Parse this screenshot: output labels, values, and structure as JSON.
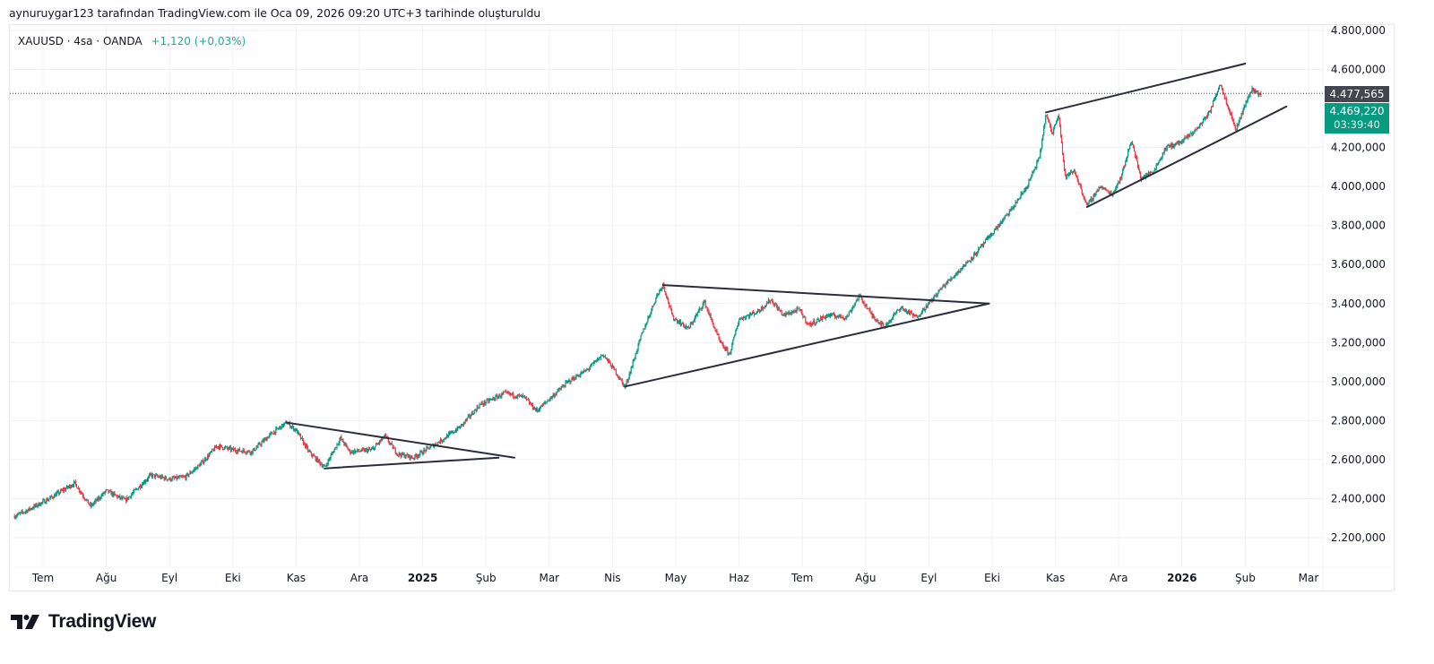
{
  "caption": "aynuruygar123 tarafından TradingView.com ile Oca 09, 2026 09:20 UTC+3 tarihinde oluşturuldu",
  "legend": {
    "symbol": "XAUUSD · 4sa · OANDA",
    "change": "+1,120 (+0,03%)",
    "change_color": "#22ab94"
  },
  "price_tags": {
    "last": "4.477,565",
    "current": "4.469,220",
    "countdown": "03:39:40",
    "last_color": "#434651",
    "current_color": "#089981"
  },
  "logo": {
    "text": "TradingView",
    "icon": "tradingview-logo-icon"
  },
  "chart_data": {
    "type": "candlestick",
    "title": "XAUUSD · 4sa · OANDA",
    "ylim": [
      2100000,
      4850000
    ],
    "y_ticks": [
      {
        "value": 4800000,
        "label": "4.800,000"
      },
      {
        "value": 4600000,
        "label": "4.600,000"
      },
      {
        "value": 4200000,
        "label": "4.200,000"
      },
      {
        "value": 4000000,
        "label": "4.000,000"
      },
      {
        "value": 3800000,
        "label": "3.800,000"
      },
      {
        "value": 3600000,
        "label": "3.600,000"
      },
      {
        "value": 3400000,
        "label": "3.400,000"
      },
      {
        "value": 3200000,
        "label": "3.200,000"
      },
      {
        "value": 3000000,
        "label": "3.000,000"
      },
      {
        "value": 2800000,
        "label": "2.800,000"
      },
      {
        "value": 2600000,
        "label": "2.600,000"
      },
      {
        "value": 2400000,
        "label": "2.400,000"
      },
      {
        "value": 2200000,
        "label": "2.200,000"
      }
    ],
    "x_ticks": [
      {
        "t": 1.0,
        "label": "Tem",
        "bold": false
      },
      {
        "t": 2.0,
        "label": "Ağu",
        "bold": false
      },
      {
        "t": 3.0,
        "label": "Eyl",
        "bold": false
      },
      {
        "t": 4.0,
        "label": "Eki",
        "bold": false
      },
      {
        "t": 5.0,
        "label": "Kas",
        "bold": false
      },
      {
        "t": 6.0,
        "label": "Ara",
        "bold": false
      },
      {
        "t": 7.0,
        "label": "2025",
        "bold": true
      },
      {
        "t": 8.0,
        "label": "Şub",
        "bold": false
      },
      {
        "t": 9.0,
        "label": "Mar",
        "bold": false
      },
      {
        "t": 10.0,
        "label": "Nis",
        "bold": false
      },
      {
        "t": 11.0,
        "label": "May",
        "bold": false
      },
      {
        "t": 12.0,
        "label": "Haz",
        "bold": false
      },
      {
        "t": 13.0,
        "label": "Tem",
        "bold": false
      },
      {
        "t": 14.0,
        "label": "Ağu",
        "bold": false
      },
      {
        "t": 15.0,
        "label": "Eyl",
        "bold": false
      },
      {
        "t": 16.0,
        "label": "Eki",
        "bold": false
      },
      {
        "t": 17.0,
        "label": "Kas",
        "bold": false
      },
      {
        "t": 18.0,
        "label": "Ara",
        "bold": false
      },
      {
        "t": 19.0,
        "label": "2026",
        "bold": true
      },
      {
        "t": 20.0,
        "label": "Şub",
        "bold": false
      },
      {
        "t": 21.0,
        "label": "Mar",
        "bold": false
      }
    ],
    "price_path": [
      [
        0.55,
        2310000
      ],
      [
        0.75,
        2340000
      ],
      [
        1.1,
        2400000
      ],
      [
        1.5,
        2480000
      ],
      [
        1.75,
        2360000
      ],
      [
        2.0,
        2440000
      ],
      [
        2.3,
        2390000
      ],
      [
        2.7,
        2520000
      ],
      [
        3.0,
        2500000
      ],
      [
        3.25,
        2510000
      ],
      [
        3.5,
        2580000
      ],
      [
        3.75,
        2670000
      ],
      [
        4.0,
        2650000
      ],
      [
        4.3,
        2640000
      ],
      [
        4.6,
        2730000
      ],
      [
        4.85,
        2790000
      ],
      [
        5.0,
        2750000
      ],
      [
        5.2,
        2640000
      ],
      [
        5.45,
        2560000
      ],
      [
        5.7,
        2710000
      ],
      [
        5.85,
        2640000
      ],
      [
        6.2,
        2650000
      ],
      [
        6.4,
        2720000
      ],
      [
        6.6,
        2630000
      ],
      [
        6.85,
        2610000
      ],
      [
        7.1,
        2660000
      ],
      [
        7.3,
        2700000
      ],
      [
        7.6,
        2770000
      ],
      [
        7.9,
        2880000
      ],
      [
        8.3,
        2940000
      ],
      [
        8.6,
        2920000
      ],
      [
        8.8,
        2850000
      ],
      [
        9.0,
        2910000
      ],
      [
        9.3,
        3000000
      ],
      [
        9.6,
        3060000
      ],
      [
        9.85,
        3140000
      ],
      [
        10.05,
        3050000
      ],
      [
        10.2,
        2970000
      ],
      [
        10.45,
        3230000
      ],
      [
        10.7,
        3440000
      ],
      [
        10.8,
        3500000
      ],
      [
        10.95,
        3330000
      ],
      [
        11.2,
        3270000
      ],
      [
        11.45,
        3410000
      ],
      [
        11.7,
        3200000
      ],
      [
        11.85,
        3140000
      ],
      [
        12.0,
        3320000
      ],
      [
        12.3,
        3360000
      ],
      [
        12.5,
        3420000
      ],
      [
        12.7,
        3340000
      ],
      [
        12.95,
        3370000
      ],
      [
        13.1,
        3290000
      ],
      [
        13.4,
        3340000
      ],
      [
        13.7,
        3330000
      ],
      [
        13.9,
        3440000
      ],
      [
        14.1,
        3340000
      ],
      [
        14.3,
        3280000
      ],
      [
        14.55,
        3380000
      ],
      [
        14.8,
        3330000
      ],
      [
        15.0,
        3400000
      ],
      [
        15.2,
        3480000
      ],
      [
        15.45,
        3560000
      ],
      [
        15.75,
        3660000
      ],
      [
        16.0,
        3760000
      ],
      [
        16.3,
        3880000
      ],
      [
        16.55,
        4000000
      ],
      [
        16.75,
        4150000
      ],
      [
        16.85,
        4370000
      ],
      [
        16.95,
        4270000
      ],
      [
        17.05,
        4380000
      ],
      [
        17.15,
        4050000
      ],
      [
        17.3,
        4080000
      ],
      [
        17.5,
        3900000
      ],
      [
        17.7,
        4000000
      ],
      [
        17.9,
        3960000
      ],
      [
        18.05,
        4060000
      ],
      [
        18.2,
        4240000
      ],
      [
        18.35,
        4040000
      ],
      [
        18.55,
        4080000
      ],
      [
        18.75,
        4200000
      ],
      [
        19.0,
        4230000
      ],
      [
        19.25,
        4300000
      ],
      [
        19.45,
        4390000
      ],
      [
        19.6,
        4530000
      ],
      [
        19.75,
        4390000
      ],
      [
        19.85,
        4290000
      ],
      [
        19.95,
        4380000
      ],
      [
        20.1,
        4500000
      ],
      [
        20.25,
        4470000
      ]
    ],
    "trend_lines": [
      {
        "name": "triangle-1-upper",
        "from": [
          4.85,
          2790000
        ],
        "to": [
          8.45,
          2610000
        ]
      },
      {
        "name": "triangle-1-lower",
        "from": [
          5.45,
          2555000
        ],
        "to": [
          8.2,
          2610000
        ]
      },
      {
        "name": "triangle-2-upper",
        "from": [
          10.8,
          3495000
        ],
        "to": [
          15.95,
          3400000
        ]
      },
      {
        "name": "triangle-2-lower",
        "from": [
          10.2,
          2975000
        ],
        "to": [
          15.95,
          3400000
        ]
      },
      {
        "name": "channel-upper",
        "from": [
          16.85,
          4380000
        ],
        "to": [
          20.0,
          4630000
        ]
      },
      {
        "name": "channel-lower",
        "from": [
          17.5,
          3895000
        ],
        "to": [
          20.65,
          4410000
        ]
      }
    ],
    "last_price": 4477565,
    "current_price": 4469220,
    "up_color": "#089981",
    "down_color": "#f23645",
    "grid": true
  }
}
